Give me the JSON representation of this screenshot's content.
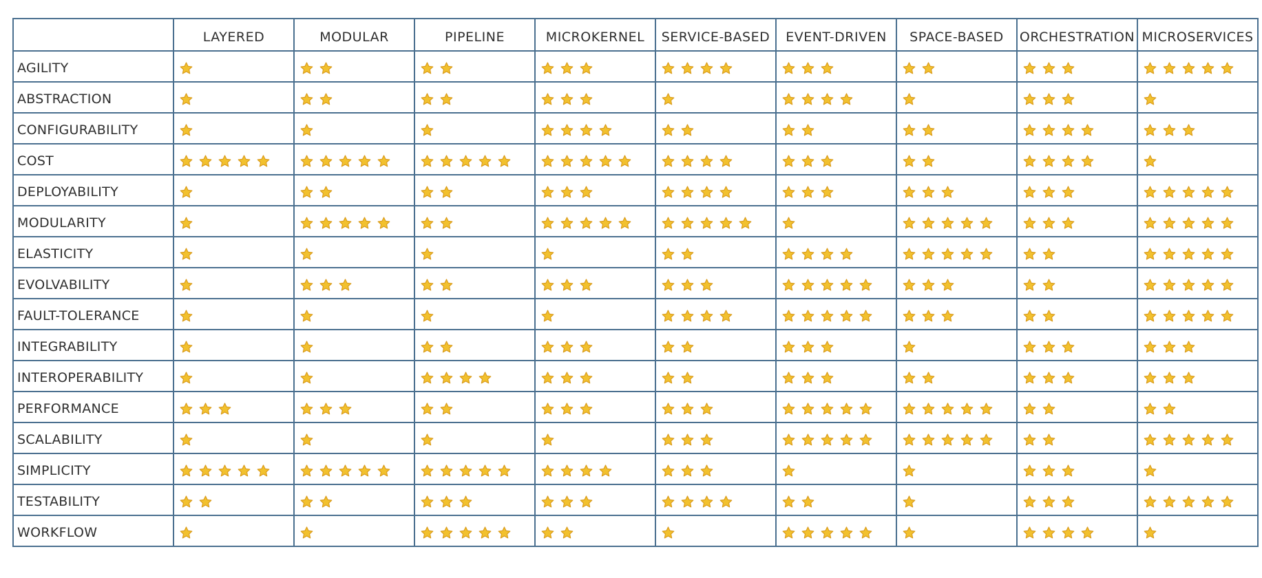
{
  "colors": {
    "border": "#4a6f8f",
    "star_fill": "#f2c12e",
    "star_stroke": "#d99a1a",
    "text": "#2f2f2f"
  },
  "icons": {
    "rating": "star-icon"
  },
  "table": {
    "corner": "",
    "columns": [
      "LAYERED",
      "MODULAR",
      "PIPELINE",
      "MICROKERNEL",
      "SERVICE-BASED",
      "EVENT-DRIVEN",
      "SPACE-BASED",
      "ORCHESTRATION",
      "MICROSERVICES"
    ],
    "rows": [
      {
        "label": "AGILITY",
        "ratings": [
          1,
          2,
          2,
          3,
          4,
          3,
          2,
          3,
          5
        ]
      },
      {
        "label": "ABSTRACTION",
        "ratings": [
          1,
          2,
          2,
          3,
          1,
          4,
          1,
          3,
          1
        ]
      },
      {
        "label": "CONFIGURABILITY",
        "ratings": [
          1,
          1,
          1,
          4,
          2,
          2,
          2,
          4,
          3
        ]
      },
      {
        "label": "COST",
        "ratings": [
          5,
          5,
          5,
          5,
          4,
          3,
          2,
          4,
          1
        ]
      },
      {
        "label": "DEPLOYABILITY",
        "ratings": [
          1,
          2,
          2,
          3,
          4,
          3,
          3,
          3,
          5
        ]
      },
      {
        "label": "MODULARITY",
        "ratings": [
          1,
          5,
          2,
          5,
          5,
          1,
          5,
          3,
          5
        ]
      },
      {
        "label": "ELASTICITY",
        "ratings": [
          1,
          1,
          1,
          1,
          2,
          4,
          5,
          2,
          5
        ]
      },
      {
        "label": "EVOLVABILITY",
        "ratings": [
          1,
          3,
          2,
          3,
          3,
          5,
          3,
          2,
          5
        ]
      },
      {
        "label": "FAULT-TOLERANCE",
        "ratings": [
          1,
          1,
          1,
          1,
          4,
          5,
          3,
          2,
          5
        ]
      },
      {
        "label": "INTEGRABILITY",
        "ratings": [
          1,
          1,
          2,
          3,
          2,
          3,
          1,
          3,
          3
        ]
      },
      {
        "label": "INTEROPERABILITY",
        "ratings": [
          1,
          1,
          4,
          3,
          2,
          3,
          2,
          3,
          3
        ]
      },
      {
        "label": "PERFORMANCE",
        "ratings": [
          3,
          3,
          2,
          3,
          3,
          5,
          5,
          2,
          2
        ]
      },
      {
        "label": "SCALABILITY",
        "ratings": [
          1,
          1,
          1,
          1,
          3,
          5,
          5,
          2,
          5
        ]
      },
      {
        "label": "SIMPLICITY",
        "ratings": [
          5,
          5,
          5,
          4,
          3,
          1,
          1,
          3,
          1
        ]
      },
      {
        "label": "TESTABILITY",
        "ratings": [
          2,
          2,
          3,
          3,
          4,
          2,
          1,
          3,
          5
        ]
      },
      {
        "label": "WORKFLOW",
        "ratings": [
          1,
          1,
          5,
          2,
          1,
          5,
          1,
          4,
          1
        ]
      }
    ]
  }
}
